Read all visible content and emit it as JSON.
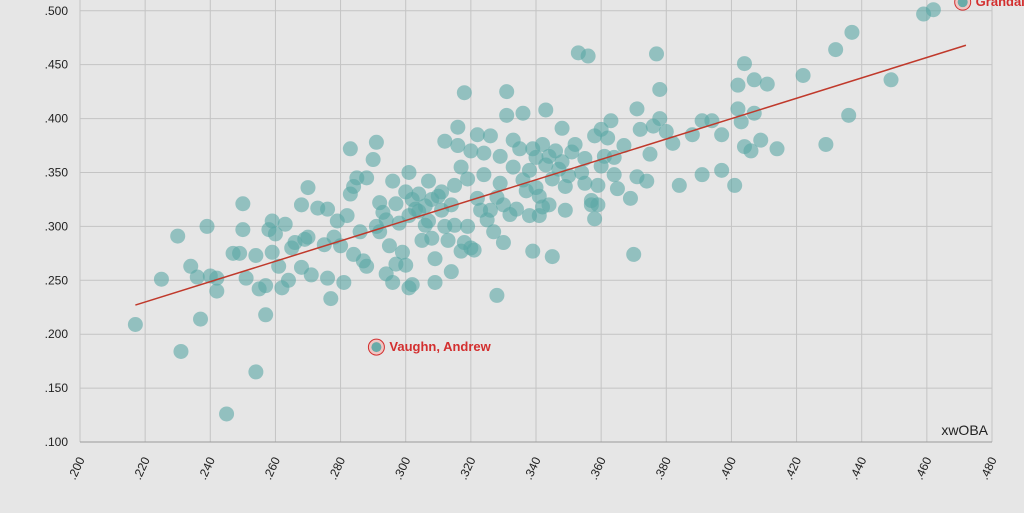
{
  "chart_data": {
    "type": "scatter",
    "xlabel": "",
    "ylabel": "",
    "corner_label": "xwOBA",
    "xlim": [
      0.2,
      0.48
    ],
    "ylim": [
      0.1,
      0.51
    ],
    "x_ticks": [
      ".200",
      ".220",
      ".240",
      ".260",
      ".280",
      ".300",
      ".320",
      ".340",
      ".360",
      ".380",
      ".400",
      ".420",
      ".440",
      ".460",
      ".480"
    ],
    "y_ticks": [
      ".100",
      ".150",
      ".200",
      ".250",
      ".300",
      ".350",
      ".400",
      ".450",
      ".500"
    ],
    "grid": true,
    "colors": {
      "point": "#5aa7a5",
      "trend": "#c0392b",
      "highlight": "#d32f2f",
      "background": "#e6e6e6",
      "grid": "#c4c4c4"
    },
    "trend_line": {
      "x": [
        0.217,
        0.472
      ],
      "y": [
        0.227,
        0.468
      ]
    },
    "highlighted": [
      {
        "label": "Grandal,",
        "x": 0.471,
        "y": 0.508
      },
      {
        "label": "Vaughn, Andrew",
        "x": 0.291,
        "y": 0.188
      }
    ],
    "points": [
      [
        0.217,
        0.209
      ],
      [
        0.225,
        0.251
      ],
      [
        0.23,
        0.291
      ],
      [
        0.231,
        0.184
      ],
      [
        0.234,
        0.263
      ],
      [
        0.236,
        0.253
      ],
      [
        0.237,
        0.214
      ],
      [
        0.239,
        0.3
      ],
      [
        0.24,
        0.254
      ],
      [
        0.242,
        0.24
      ],
      [
        0.242,
        0.252
      ],
      [
        0.245,
        0.126
      ],
      [
        0.247,
        0.275
      ],
      [
        0.249,
        0.275
      ],
      [
        0.25,
        0.321
      ],
      [
        0.25,
        0.297
      ],
      [
        0.251,
        0.252
      ],
      [
        0.254,
        0.165
      ],
      [
        0.254,
        0.273
      ],
      [
        0.255,
        0.242
      ],
      [
        0.257,
        0.218
      ],
      [
        0.257,
        0.245
      ],
      [
        0.258,
        0.297
      ],
      [
        0.259,
        0.305
      ],
      [
        0.259,
        0.276
      ],
      [
        0.26,
        0.293
      ],
      [
        0.261,
        0.263
      ],
      [
        0.262,
        0.243
      ],
      [
        0.263,
        0.302
      ],
      [
        0.264,
        0.25
      ],
      [
        0.265,
        0.28
      ],
      [
        0.266,
        0.285
      ],
      [
        0.268,
        0.32
      ],
      [
        0.268,
        0.262
      ],
      [
        0.269,
        0.288
      ],
      [
        0.27,
        0.336
      ],
      [
        0.27,
        0.29
      ],
      [
        0.271,
        0.255
      ],
      [
        0.273,
        0.317
      ],
      [
        0.275,
        0.283
      ],
      [
        0.276,
        0.316
      ],
      [
        0.276,
        0.252
      ],
      [
        0.277,
        0.233
      ],
      [
        0.278,
        0.29
      ],
      [
        0.279,
        0.305
      ],
      [
        0.28,
        0.282
      ],
      [
        0.281,
        0.248
      ],
      [
        0.282,
        0.31
      ],
      [
        0.283,
        0.372
      ],
      [
        0.283,
        0.33
      ],
      [
        0.284,
        0.274
      ],
      [
        0.284,
        0.337
      ],
      [
        0.285,
        0.345
      ],
      [
        0.286,
        0.295
      ],
      [
        0.287,
        0.268
      ],
      [
        0.288,
        0.263
      ],
      [
        0.288,
        0.345
      ],
      [
        0.29,
        0.362
      ],
      [
        0.291,
        0.3
      ],
      [
        0.291,
        0.378
      ],
      [
        0.292,
        0.322
      ],
      [
        0.292,
        0.295
      ],
      [
        0.293,
        0.313
      ],
      [
        0.294,
        0.306
      ],
      [
        0.294,
        0.256
      ],
      [
        0.295,
        0.282
      ],
      [
        0.296,
        0.248
      ],
      [
        0.296,
        0.342
      ],
      [
        0.297,
        0.321
      ],
      [
        0.297,
        0.265
      ],
      [
        0.298,
        0.303
      ],
      [
        0.299,
        0.276
      ],
      [
        0.3,
        0.332
      ],
      [
        0.3,
        0.264
      ],
      [
        0.301,
        0.35
      ],
      [
        0.301,
        0.31
      ],
      [
        0.301,
        0.243
      ],
      [
        0.302,
        0.325
      ],
      [
        0.302,
        0.246
      ],
      [
        0.303,
        0.316
      ],
      [
        0.304,
        0.33
      ],
      [
        0.304,
        0.314
      ],
      [
        0.305,
        0.287
      ],
      [
        0.306,
        0.301
      ],
      [
        0.306,
        0.319
      ],
      [
        0.307,
        0.305
      ],
      [
        0.307,
        0.342
      ],
      [
        0.308,
        0.325
      ],
      [
        0.308,
        0.289
      ],
      [
        0.309,
        0.248
      ],
      [
        0.309,
        0.27
      ],
      [
        0.31,
        0.328
      ],
      [
        0.311,
        0.315
      ],
      [
        0.311,
        0.332
      ],
      [
        0.312,
        0.379
      ],
      [
        0.312,
        0.3
      ],
      [
        0.313,
        0.287
      ],
      [
        0.314,
        0.258
      ],
      [
        0.314,
        0.32
      ],
      [
        0.315,
        0.338
      ],
      [
        0.315,
        0.301
      ],
      [
        0.316,
        0.375
      ],
      [
        0.316,
        0.392
      ],
      [
        0.317,
        0.277
      ],
      [
        0.317,
        0.355
      ],
      [
        0.318,
        0.424
      ],
      [
        0.318,
        0.285
      ],
      [
        0.319,
        0.3
      ],
      [
        0.319,
        0.344
      ],
      [
        0.32,
        0.37
      ],
      [
        0.32,
        0.28
      ],
      [
        0.321,
        0.278
      ],
      [
        0.322,
        0.326
      ],
      [
        0.322,
        0.385
      ],
      [
        0.323,
        0.315
      ],
      [
        0.324,
        0.368
      ],
      [
        0.324,
        0.348
      ],
      [
        0.325,
        0.306
      ],
      [
        0.326,
        0.384
      ],
      [
        0.326,
        0.315
      ],
      [
        0.327,
        0.295
      ],
      [
        0.328,
        0.236
      ],
      [
        0.328,
        0.327
      ],
      [
        0.329,
        0.365
      ],
      [
        0.329,
        0.34
      ],
      [
        0.33,
        0.32
      ],
      [
        0.33,
        0.285
      ],
      [
        0.331,
        0.425
      ],
      [
        0.331,
        0.403
      ],
      [
        0.332,
        0.311
      ],
      [
        0.333,
        0.38
      ],
      [
        0.333,
        0.355
      ],
      [
        0.334,
        0.316
      ],
      [
        0.335,
        0.372
      ],
      [
        0.336,
        0.405
      ],
      [
        0.336,
        0.343
      ],
      [
        0.337,
        0.333
      ],
      [
        0.338,
        0.31
      ],
      [
        0.338,
        0.352
      ],
      [
        0.339,
        0.372
      ],
      [
        0.339,
        0.277
      ],
      [
        0.34,
        0.364
      ],
      [
        0.34,
        0.336
      ],
      [
        0.341,
        0.31
      ],
      [
        0.341,
        0.328
      ],
      [
        0.342,
        0.318
      ],
      [
        0.342,
        0.376
      ],
      [
        0.343,
        0.357
      ],
      [
        0.343,
        0.408
      ],
      [
        0.344,
        0.365
      ],
      [
        0.344,
        0.32
      ],
      [
        0.345,
        0.344
      ],
      [
        0.345,
        0.272
      ],
      [
        0.346,
        0.37
      ],
      [
        0.347,
        0.353
      ],
      [
        0.348,
        0.36
      ],
      [
        0.348,
        0.391
      ],
      [
        0.349,
        0.315
      ],
      [
        0.349,
        0.337
      ],
      [
        0.35,
        0.347
      ],
      [
        0.351,
        0.369
      ],
      [
        0.352,
        0.376
      ],
      [
        0.353,
        0.461
      ],
      [
        0.354,
        0.35
      ],
      [
        0.355,
        0.363
      ],
      [
        0.355,
        0.34
      ],
      [
        0.356,
        0.458
      ],
      [
        0.357,
        0.324
      ],
      [
        0.357,
        0.32
      ],
      [
        0.358,
        0.384
      ],
      [
        0.358,
        0.307
      ],
      [
        0.359,
        0.338
      ],
      [
        0.359,
        0.32
      ],
      [
        0.36,
        0.39
      ],
      [
        0.36,
        0.356
      ],
      [
        0.361,
        0.365
      ],
      [
        0.362,
        0.382
      ],
      [
        0.363,
        0.398
      ],
      [
        0.364,
        0.348
      ],
      [
        0.364,
        0.364
      ],
      [
        0.365,
        0.335
      ],
      [
        0.367,
        0.375
      ],
      [
        0.369,
        0.326
      ],
      [
        0.37,
        0.274
      ],
      [
        0.371,
        0.346
      ],
      [
        0.371,
        0.409
      ],
      [
        0.372,
        0.39
      ],
      [
        0.374,
        0.342
      ],
      [
        0.375,
        0.367
      ],
      [
        0.376,
        0.393
      ],
      [
        0.377,
        0.46
      ],
      [
        0.378,
        0.4
      ],
      [
        0.378,
        0.427
      ],
      [
        0.38,
        0.388
      ],
      [
        0.382,
        0.377
      ],
      [
        0.384,
        0.338
      ],
      [
        0.388,
        0.385
      ],
      [
        0.391,
        0.348
      ],
      [
        0.391,
        0.398
      ],
      [
        0.394,
        0.398
      ],
      [
        0.397,
        0.352
      ],
      [
        0.397,
        0.385
      ],
      [
        0.401,
        0.338
      ],
      [
        0.402,
        0.431
      ],
      [
        0.402,
        0.409
      ],
      [
        0.403,
        0.397
      ],
      [
        0.404,
        0.374
      ],
      [
        0.404,
        0.451
      ],
      [
        0.406,
        0.37
      ],
      [
        0.407,
        0.436
      ],
      [
        0.407,
        0.405
      ],
      [
        0.409,
        0.38
      ],
      [
        0.411,
        0.432
      ],
      [
        0.414,
        0.372
      ],
      [
        0.422,
        0.44
      ],
      [
        0.429,
        0.376
      ],
      [
        0.432,
        0.464
      ],
      [
        0.436,
        0.403
      ],
      [
        0.437,
        0.48
      ],
      [
        0.449,
        0.436
      ],
      [
        0.459,
        0.497
      ],
      [
        0.462,
        0.501
      ]
    ]
  }
}
